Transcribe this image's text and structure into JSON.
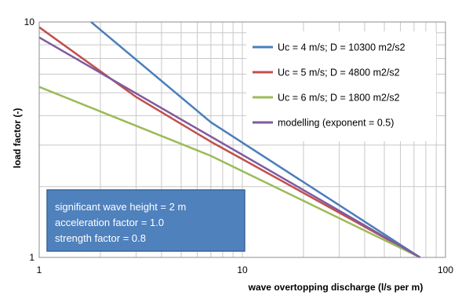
{
  "chart_data": {
    "type": "line",
    "title": "",
    "xlabel": "wave overtopping discharge (l/s per m)",
    "ylabel": "load factor (-)",
    "x_scale": "log",
    "y_scale": "log",
    "xlim": [
      1,
      100
    ],
    "ylim": [
      1,
      10
    ],
    "x_ticks": [
      "1",
      "10",
      "100"
    ],
    "y_ticks": [
      "1",
      "10"
    ],
    "grid": true,
    "legend_position": "top-right",
    "series": [
      {
        "name": "Uc = 4 m/s; D = 10300 m2/s2",
        "color": "#4a7ebb",
        "points": [
          [
            1.8,
            10
          ],
          [
            7,
            3.75
          ],
          [
            75,
            1
          ]
        ]
      },
      {
        "name": "Uc = 5 m/s; D = 4800 m2/s2",
        "color": "#c0504d",
        "points": [
          [
            1,
            9.5
          ],
          [
            3,
            4.8
          ],
          [
            7,
            3.1
          ],
          [
            75,
            1
          ]
        ]
      },
      {
        "name": "Uc = 6 m/s; D = 1800 m2/s2",
        "color": "#9bbb59",
        "points": [
          [
            1,
            5.3
          ],
          [
            7,
            2.7
          ],
          [
            75,
            1
          ]
        ]
      },
      {
        "name": "modelling (exponent = 0.5)",
        "color": "#7f5aa0",
        "points": [
          [
            1,
            8.6
          ],
          [
            75,
            1
          ]
        ]
      }
    ],
    "annotation": {
      "lines": [
        "significant wave height = 2 m",
        "acceleration factor = 1.0",
        "strength factor = 0.8"
      ],
      "fill": "#4f81bd"
    }
  }
}
